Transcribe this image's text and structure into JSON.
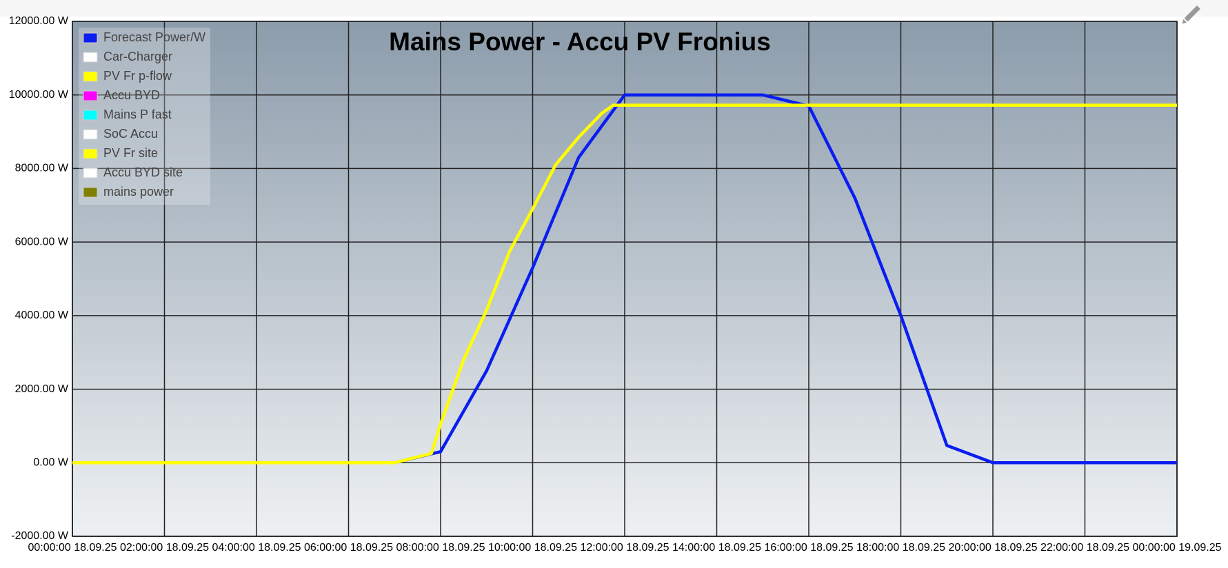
{
  "chart_data": {
    "type": "line",
    "title": "Mains Power - Accu PV Fronius",
    "xlim": [
      0,
      24
    ],
    "xticks": [
      {
        "value": 0,
        "label": "00:00:00 18.09.25"
      },
      {
        "value": 2,
        "label": "02:00:00 18.09.25"
      },
      {
        "value": 4,
        "label": "04:00:00 18.09.25"
      },
      {
        "value": 6,
        "label": "06:00:00 18.09.25"
      },
      {
        "value": 8,
        "label": "08:00:00 18.09.25"
      },
      {
        "value": 10,
        "label": "10:00:00 18.09.25"
      },
      {
        "value": 12,
        "label": "12:00:00 18.09.25"
      },
      {
        "value": 14,
        "label": "14:00:00 18.09.25"
      },
      {
        "value": 16,
        "label": "16:00:00 18.09.25"
      },
      {
        "value": 18,
        "label": "18:00:00 18.09.25"
      },
      {
        "value": 20,
        "label": "20:00:00 18.09.25"
      },
      {
        "value": 22,
        "label": "22:00:00 18.09.25"
      },
      {
        "value": 24,
        "label": "00:00:00 19.09.25"
      }
    ],
    "ylim": [
      -2000,
      12000
    ],
    "yticks": [
      {
        "value": -2000,
        "label": "-2000.00 W"
      },
      {
        "value": 0,
        "label": "0.00 W"
      },
      {
        "value": 2000,
        "label": "2000.00 W"
      },
      {
        "value": 4000,
        "label": "4000.00 W"
      },
      {
        "value": 6000,
        "label": "6000.00 W"
      },
      {
        "value": 8000,
        "label": "8000.00 W"
      },
      {
        "value": 10000,
        "label": "10000.00 W"
      },
      {
        "value": 12000,
        "label": "12000.00 W"
      }
    ],
    "grid": true,
    "legend": "upper left",
    "series": [
      {
        "name": "Forecast Power/W",
        "color": "#0a1ef0",
        "x": [
          0,
          7,
          8,
          9,
          10,
          11,
          12,
          13,
          14,
          15,
          16,
          17,
          18,
          19,
          20,
          24
        ],
        "values": [
          0,
          0,
          300,
          2500,
          5300,
          8300,
          10000,
          10000,
          10000,
          10000,
          9700,
          7200,
          4000,
          470,
          0,
          0
        ]
      },
      {
        "name": "Car-Charger",
        "color": "#ffffff"
      },
      {
        "name": "PV Fr p-flow",
        "color": "#ffff00",
        "x": [
          0,
          7,
          7.8,
          8,
          8.5,
          9,
          9.5,
          10,
          10.5,
          11,
          11.5,
          11.75,
          24
        ],
        "values": [
          0,
          0,
          250,
          1050,
          2800,
          4150,
          5750,
          6900,
          8100,
          8850,
          9500,
          9720,
          9720
        ]
      },
      {
        "name": "Accu BYD",
        "color": "#ff00ff"
      },
      {
        "name": "Mains P fast",
        "color": "#00ffff"
      },
      {
        "name": "SoC Accu",
        "color": "#ffffff"
      },
      {
        "name": "PV Fr site",
        "color": "#ffff00"
      },
      {
        "name": "Accu BYD site",
        "color": "#ffffff"
      },
      {
        "name": "mains power",
        "color": "#808000"
      }
    ]
  }
}
